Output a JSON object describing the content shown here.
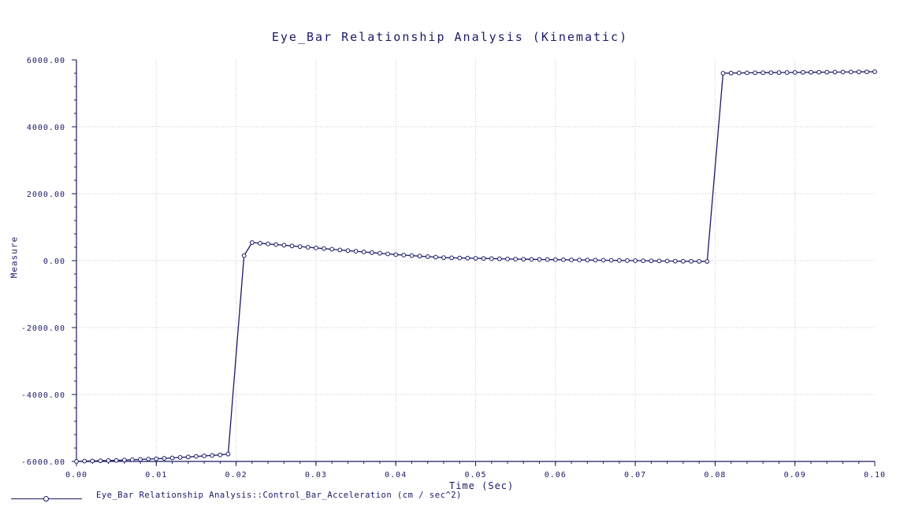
{
  "chart_data": {
    "type": "line",
    "title": "Eye_Bar Relationship Analysis (Kinematic)",
    "xlabel": "Time (Sec)",
    "ylabel": "Measure",
    "xlim": [
      0.0,
      0.1
    ],
    "ylim": [
      -6000,
      6000
    ],
    "x_ticks": [
      "0.00",
      "0.01",
      "0.02",
      "0.03",
      "0.04",
      "0.05",
      "0.06",
      "0.07",
      "0.08",
      "0.09",
      "0.10"
    ],
    "y_ticks": [
      "6000.00",
      "4000.00",
      "2000.00",
      "0.00",
      "-2000.00",
      "-4000.00",
      "-6000.00"
    ],
    "grid": true,
    "legend_position": "bottom-left",
    "colors": {
      "series": "#1a1a66",
      "axis": "#1a1a66",
      "grid": "#c8c8c8"
    },
    "series": [
      {
        "name": "Eye_Bar Relationship Analysis::Control_Bar_Acceleration (cm / sec^2)",
        "x": [
          0.0,
          0.001,
          0.002,
          0.003,
          0.004,
          0.005,
          0.006,
          0.007,
          0.008,
          0.009,
          0.01,
          0.011,
          0.012,
          0.013,
          0.014,
          0.015,
          0.016,
          0.017,
          0.018,
          0.019,
          0.021,
          0.022,
          0.023,
          0.024,
          0.025,
          0.026,
          0.027,
          0.028,
          0.029,
          0.03,
          0.031,
          0.032,
          0.033,
          0.034,
          0.035,
          0.036,
          0.037,
          0.038,
          0.039,
          0.04,
          0.041,
          0.042,
          0.043,
          0.044,
          0.045,
          0.046,
          0.047,
          0.048,
          0.049,
          0.05,
          0.051,
          0.052,
          0.053,
          0.054,
          0.055,
          0.056,
          0.057,
          0.058,
          0.059,
          0.06,
          0.061,
          0.062,
          0.063,
          0.064,
          0.065,
          0.066,
          0.067,
          0.068,
          0.069,
          0.07,
          0.071,
          0.072,
          0.073,
          0.074,
          0.075,
          0.076,
          0.077,
          0.078,
          0.079,
          0.081,
          0.082,
          0.083,
          0.084,
          0.085,
          0.086,
          0.087,
          0.088,
          0.089,
          0.09,
          0.091,
          0.092,
          0.093,
          0.094,
          0.095,
          0.096,
          0.097,
          0.098,
          0.099,
          0.1
        ],
        "y": [
          -6000,
          -5990,
          -5985,
          -5980,
          -5975,
          -5970,
          -5960,
          -5950,
          -5940,
          -5930,
          -5920,
          -5910,
          -5895,
          -5880,
          -5865,
          -5850,
          -5835,
          -5820,
          -5805,
          -5780,
          150,
          540,
          520,
          500,
          480,
          460,
          440,
          420,
          400,
          380,
          360,
          340,
          320,
          300,
          280,
          260,
          240,
          220,
          200,
          180,
          165,
          150,
          135,
          120,
          105,
          90,
          85,
          80,
          75,
          70,
          65,
          60,
          55,
          50,
          45,
          42,
          39,
          36,
          33,
          30,
          27,
          24,
          21,
          18,
          15,
          12,
          9,
          6,
          3,
          0,
          -3,
          -6,
          -9,
          -12,
          -15,
          -18,
          -20,
          -22,
          -24,
          5600,
          5605,
          5610,
          5612,
          5614,
          5616,
          5618,
          5620,
          5622,
          5624,
          5626,
          5628,
          5630,
          5632,
          5634,
          5636,
          5638,
          5640,
          5642,
          5645
        ]
      }
    ]
  }
}
